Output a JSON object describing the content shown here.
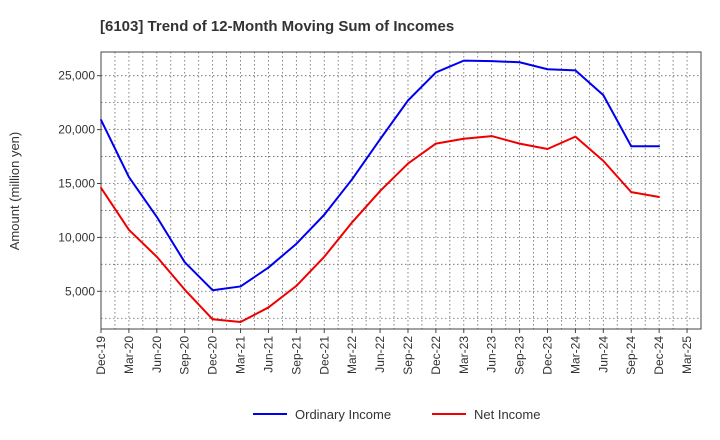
{
  "chart_data": {
    "type": "line",
    "title": "[6103]  Trend of 12-Month Moving Sum of Incomes",
    "xlabel": "",
    "ylabel": "Amount (million yen)",
    "categories": [
      "Dec-19",
      "Mar-20",
      "Jun-20",
      "Sep-20",
      "Dec-20",
      "Mar-21",
      "Jun-21",
      "Sep-21",
      "Dec-21",
      "Mar-22",
      "Jun-22",
      "Sep-22",
      "Dec-22",
      "Mar-23",
      "Jun-23",
      "Sep-23",
      "Dec-23",
      "Mar-24",
      "Jun-24",
      "Sep-24",
      "Dec-24",
      "Mar-25"
    ],
    "ylim": [
      1500,
      27200
    ],
    "yticks": [
      5000,
      10000,
      15000,
      20000,
      25000
    ],
    "ytick_labels": [
      "5,000",
      "10,000",
      "15,000",
      "20,000",
      "25,000"
    ],
    "grid": true,
    "legend_position": "bottom",
    "series": [
      {
        "name": "Ordinary Income",
        "color": "#0000ee",
        "values": [
          20900,
          15600,
          11900,
          7700,
          5100,
          5450,
          7200,
          9400,
          12100,
          15400,
          19100,
          22700,
          25300,
          26400,
          26350,
          26250,
          25600,
          25500,
          23200,
          18450,
          18450,
          null
        ]
      },
      {
        "name": "Net Income",
        "color": "#ee0000",
        "values": [
          14600,
          10700,
          8200,
          5150,
          2400,
          2150,
          3500,
          5500,
          8200,
          11400,
          14300,
          16850,
          18700,
          19150,
          19400,
          18700,
          18200,
          19350,
          17100,
          14200,
          13750,
          null
        ]
      }
    ]
  }
}
